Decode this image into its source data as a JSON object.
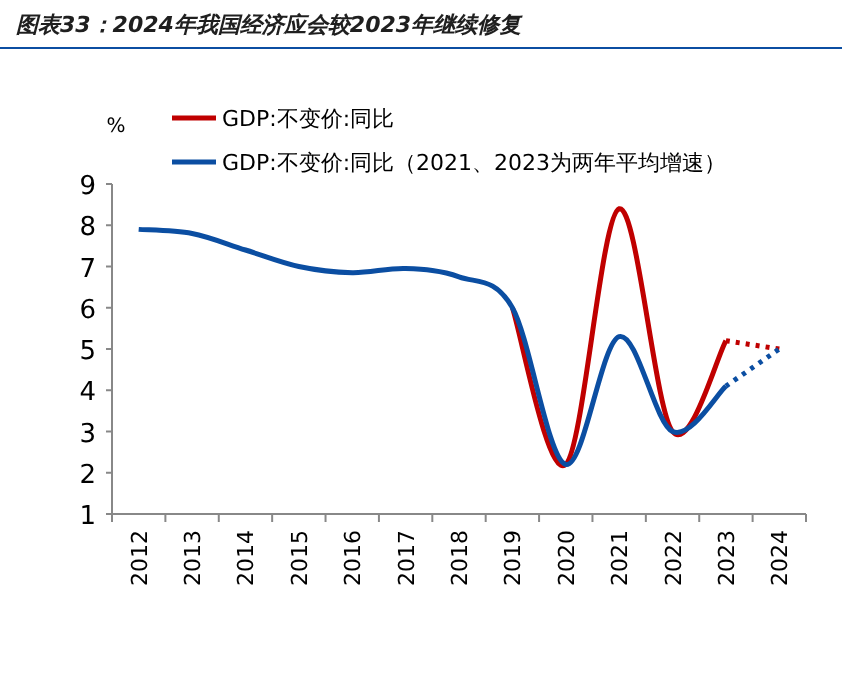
{
  "chart_data": {
    "type": "line",
    "title": "图表33：2024年我国经济应会较2023年继续修复",
    "ylabel": "%",
    "categories": [
      "2012",
      "2013",
      "2014",
      "2015",
      "2016",
      "2017",
      "2018",
      "2019",
      "2020",
      "2021",
      "2022",
      "2023",
      "2024"
    ],
    "series": [
      {
        "name": "GDP:不变价:同比",
        "color": "#c00000",
        "line_style": "solid",
        "values": [
          null,
          null,
          null,
          null,
          null,
          null,
          null,
          6.0,
          2.2,
          8.4,
          3.0,
          5.2,
          null
        ]
      },
      {
        "color": "#c00000",
        "line_style": "dotted",
        "values": [
          null,
          null,
          null,
          null,
          null,
          null,
          null,
          null,
          null,
          null,
          null,
          5.2,
          5.0
        ]
      },
      {
        "name": "GDP:不变价:同比（2021、2023为两年平均增速）",
        "color": "#0b4ea2",
        "line_style": "solid",
        "values": [
          7.9,
          7.8,
          7.4,
          7.0,
          6.85,
          6.95,
          6.75,
          6.0,
          2.2,
          5.3,
          3.0,
          4.1,
          null
        ]
      },
      {
        "color": "#0b4ea2",
        "line_style": "dotted",
        "values": [
          null,
          null,
          null,
          null,
          null,
          null,
          null,
          null,
          null,
          null,
          null,
          4.1,
          5.0
        ]
      }
    ],
    "ylim": [
      1,
      9
    ],
    "yticks": [
      1,
      2,
      3,
      4,
      5,
      6,
      7,
      8,
      9
    ],
    "grid": false,
    "legend": "top",
    "marker": "none"
  }
}
